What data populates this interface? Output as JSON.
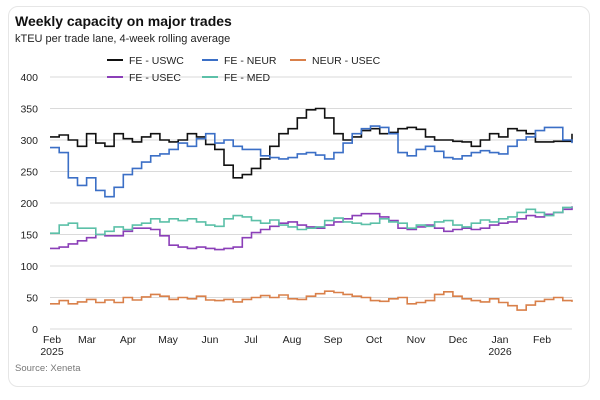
{
  "header": {
    "title": "Weekly capacity on major trades",
    "subtitle": "kTEU per trade lane, 4-week rolling average"
  },
  "footer": {
    "source": "Source: Xeneta"
  },
  "chart_data": {
    "type": "line",
    "step": true,
    "title": "Weekly capacity on major trades",
    "subtitle": "kTEU per trade lane, 4-week rolling average",
    "xlabel": "",
    "ylabel": "",
    "ylim": [
      0,
      400
    ],
    "yticks": [
      0,
      50,
      100,
      150,
      200,
      250,
      300,
      350,
      400
    ],
    "grid": "horizontal",
    "legend_position": "top-center",
    "x_tick_labels": [
      "Feb",
      "Mar",
      "Apr",
      "May",
      "Jun",
      "Jul",
      "Aug",
      "Sep",
      "Oct",
      "Nov",
      "Dec",
      "Jan",
      "Feb"
    ],
    "x_year_labels": [
      "2025",
      "2026"
    ],
    "x_week_range": [
      0,
      57
    ],
    "series": [
      {
        "name": "FE - USWC",
        "color": "#111111",
        "values": [
          305,
          308,
          300,
          290,
          310,
          295,
          290,
          310,
          302,
          297,
          305,
          310,
          300,
          297,
          300,
          310,
          305,
          293,
          285,
          260,
          240,
          245,
          255,
          270,
          290,
          310,
          318,
          335,
          348,
          350,
          335,
          310,
          300,
          305,
          315,
          318,
          310,
          312,
          318,
          320,
          317,
          305,
          300,
          300,
          298,
          297,
          290,
          300,
          310,
          305,
          318,
          315,
          310,
          297,
          297,
          298,
          298,
          310
        ]
      },
      {
        "name": "FE - NEUR",
        "color": "#3b6fc6",
        "values": [
          288,
          280,
          240,
          228,
          240,
          220,
          210,
          225,
          245,
          255,
          265,
          275,
          278,
          285,
          295,
          290,
          302,
          310,
          295,
          300,
          290,
          285,
          285,
          275,
          272,
          270,
          272,
          278,
          280,
          276,
          270,
          280,
          295,
          310,
          318,
          322,
          320,
          310,
          280,
          275,
          285,
          290,
          282,
          272,
          270,
          275,
          280,
          283,
          280,
          278,
          290,
          300,
          305,
          315,
          320,
          320,
          300,
          295
        ]
      },
      {
        "name": "NEUR - USEC",
        "color": "#d9804a",
        "values": [
          40,
          45,
          40,
          43,
          47,
          42,
          46,
          42,
          50,
          46,
          51,
          55,
          52,
          47,
          50,
          48,
          52,
          46,
          45,
          47,
          43,
          47,
          50,
          53,
          50,
          54,
          48,
          47,
          52,
          56,
          60,
          58,
          55,
          52,
          50,
          45,
          44,
          48,
          50,
          40,
          42,
          45,
          55,
          59,
          52,
          48,
          45,
          43,
          48,
          42,
          37,
          30,
          38,
          44,
          47,
          50,
          45,
          43
        ]
      },
      {
        "name": "FE - USEC",
        "color": "#8b3fb8",
        "values": [
          128,
          130,
          135,
          140,
          145,
          150,
          148,
          148,
          155,
          160,
          160,
          158,
          148,
          133,
          130,
          128,
          130,
          128,
          126,
          128,
          130,
          145,
          153,
          158,
          163,
          168,
          170,
          165,
          162,
          160,
          165,
          170,
          175,
          180,
          183,
          183,
          178,
          172,
          160,
          158,
          162,
          165,
          160,
          155,
          158,
          160,
          158,
          160,
          165,
          168,
          170,
          175,
          180,
          178,
          182,
          185,
          190,
          195
        ]
      },
      {
        "name": "FE - MED",
        "color": "#5cc0a8",
        "values": [
          152,
          165,
          168,
          160,
          160,
          150,
          155,
          162,
          158,
          165,
          168,
          175,
          170,
          175,
          172,
          175,
          170,
          165,
          163,
          175,
          180,
          178,
          172,
          168,
          173,
          165,
          162,
          158,
          160,
          162,
          172,
          176,
          170,
          168,
          166,
          168,
          175,
          170,
          168,
          160,
          165,
          163,
          170,
          172,
          165,
          162,
          168,
          173,
          170,
          175,
          178,
          185,
          190,
          185,
          180,
          185,
          193,
          192
        ]
      }
    ]
  }
}
